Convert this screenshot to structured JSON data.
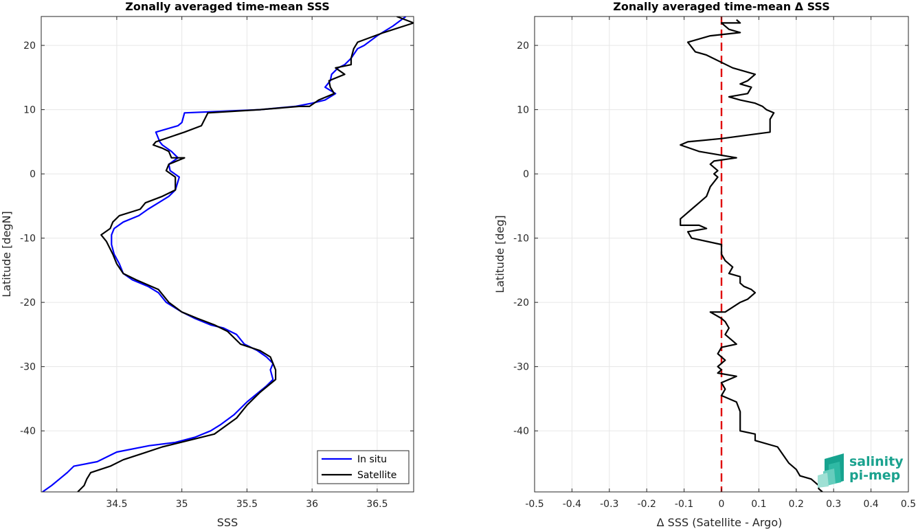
{
  "chart_data": [
    {
      "type": "line",
      "title": "Zonally averaged time-mean SSS",
      "xlabel": "SSS",
      "ylabel": "Latitude [degN]",
      "xlim": [
        33.92,
        36.78
      ],
      "ylim": [
        -49.5,
        24.5
      ],
      "xticks": [
        34.5,
        35,
        35.5,
        36,
        36.5
      ],
      "xtick_labels": [
        "34.5",
        "35",
        "35.5",
        "36",
        "36.5"
      ],
      "yticks": [
        20,
        10,
        0,
        -10,
        -20,
        -30,
        -40
      ],
      "ytick_labels": [
        "20",
        "10",
        "0",
        "-10",
        "-20",
        "-30",
        "-40"
      ],
      "grid": true,
      "legend": {
        "placement": "bottom-right"
      },
      "series": [
        {
          "name": "In situ",
          "color": "#0000ff",
          "points": [
            [
              36.72,
              24.5
            ],
            [
              36.62,
              23.0
            ],
            [
              36.5,
              21.5
            ],
            [
              36.4,
              20.0
            ],
            [
              36.35,
              19.5
            ],
            [
              36.3,
              18.0
            ],
            [
              36.25,
              17.0
            ],
            [
              36.2,
              16.5
            ],
            [
              36.15,
              15.5
            ],
            [
              36.14,
              14.5
            ],
            [
              36.1,
              13.5
            ],
            [
              36.18,
              12.5
            ],
            [
              36.1,
              11.5
            ],
            [
              36.0,
              11.0
            ],
            [
              35.87,
              10.5
            ],
            [
              35.6,
              10.0
            ],
            [
              35.02,
              9.5
            ],
            [
              35.0,
              8.0
            ],
            [
              34.97,
              7.5
            ],
            [
              34.8,
              6.5
            ],
            [
              34.83,
              5.0
            ],
            [
              34.85,
              4.5
            ],
            [
              34.92,
              3.5
            ],
            [
              34.97,
              2.5
            ],
            [
              34.9,
              1.5
            ],
            [
              34.91,
              0.5
            ],
            [
              34.98,
              -0.5
            ],
            [
              34.95,
              -2.5
            ],
            [
              34.9,
              -3.5
            ],
            [
              34.82,
              -4.5
            ],
            [
              34.74,
              -5.5
            ],
            [
              34.67,
              -6.5
            ],
            [
              34.55,
              -7.5
            ],
            [
              34.48,
              -8.5
            ],
            [
              34.46,
              -9.5
            ],
            [
              34.46,
              -11.0
            ],
            [
              34.48,
              -12.5
            ],
            [
              34.52,
              -14.0
            ],
            [
              34.55,
              -15.5
            ],
            [
              34.62,
              -16.5
            ],
            [
              34.74,
              -17.5
            ],
            [
              34.82,
              -18.5
            ],
            [
              34.88,
              -20.0
            ],
            [
              35.0,
              -21.5
            ],
            [
              35.1,
              -22.5
            ],
            [
              35.22,
              -23.5
            ],
            [
              35.32,
              -24.0
            ],
            [
              35.42,
              -25.0
            ],
            [
              35.48,
              -26.5
            ],
            [
              35.58,
              -27.5
            ],
            [
              35.65,
              -28.5
            ],
            [
              35.7,
              -29.5
            ],
            [
              35.68,
              -30.5
            ],
            [
              35.7,
              -32.0
            ],
            [
              35.65,
              -33.0
            ],
            [
              35.5,
              -35.5
            ],
            [
              35.4,
              -37.5
            ],
            [
              35.3,
              -39.0
            ],
            [
              35.22,
              -40.0
            ],
            [
              35.1,
              -41.0
            ],
            [
              34.95,
              -41.8
            ],
            [
              34.75,
              -42.3
            ],
            [
              34.5,
              -43.3
            ],
            [
              34.35,
              -44.8
            ],
            [
              34.17,
              -45.5
            ],
            [
              34.12,
              -46.5
            ],
            [
              34.06,
              -47.5
            ],
            [
              34.0,
              -48.5
            ],
            [
              33.93,
              -49.5
            ]
          ]
        },
        {
          "name": "Satellite",
          "color": "#000000",
          "points": [
            [
              36.65,
              24.5
            ],
            [
              36.78,
              23.5
            ],
            [
              36.55,
              22.0
            ],
            [
              36.35,
              20.5
            ],
            [
              36.32,
              19.5
            ],
            [
              36.3,
              18.0
            ],
            [
              36.3,
              17.0
            ],
            [
              36.18,
              16.5
            ],
            [
              36.25,
              15.5
            ],
            [
              36.13,
              14.5
            ],
            [
              36.14,
              13.5
            ],
            [
              36.17,
              12.5
            ],
            [
              36.05,
              11.5
            ],
            [
              35.98,
              10.5
            ],
            [
              35.9,
              10.5
            ],
            [
              35.6,
              10.0
            ],
            [
              35.2,
              9.5
            ],
            [
              35.15,
              7.5
            ],
            [
              35.02,
              6.5
            ],
            [
              34.8,
              5.0
            ],
            [
              34.78,
              4.5
            ],
            [
              34.85,
              4.0
            ],
            [
              34.9,
              3.5
            ],
            [
              34.92,
              2.5
            ],
            [
              35.02,
              2.5
            ],
            [
              34.9,
              1.5
            ],
            [
              34.88,
              0.5
            ],
            [
              34.95,
              -0.5
            ],
            [
              34.95,
              -2.5
            ],
            [
              34.85,
              -3.5
            ],
            [
              34.72,
              -4.5
            ],
            [
              34.68,
              -5.5
            ],
            [
              34.52,
              -6.5
            ],
            [
              34.47,
              -7.5
            ],
            [
              34.45,
              -8.5
            ],
            [
              34.38,
              -9.5
            ],
            [
              34.42,
              -10.5
            ],
            [
              34.47,
              -12.5
            ],
            [
              34.5,
              -14.0
            ],
            [
              34.55,
              -15.5
            ],
            [
              34.65,
              -16.5
            ],
            [
              34.82,
              -18.0
            ],
            [
              34.9,
              -20.0
            ],
            [
              35.0,
              -21.5
            ],
            [
              35.12,
              -22.5
            ],
            [
              35.25,
              -23.5
            ],
            [
              35.35,
              -24.5
            ],
            [
              35.45,
              -26.5
            ],
            [
              35.6,
              -27.5
            ],
            [
              35.68,
              -28.5
            ],
            [
              35.72,
              -30.5
            ],
            [
              35.72,
              -32.0
            ],
            [
              35.6,
              -34.0
            ],
            [
              35.5,
              -36.0
            ],
            [
              35.42,
              -38.0
            ],
            [
              35.25,
              -40.5
            ],
            [
              35.05,
              -41.5
            ],
            [
              34.85,
              -42.5
            ],
            [
              34.7,
              -43.5
            ],
            [
              34.55,
              -44.5
            ],
            [
              34.45,
              -45.5
            ],
            [
              34.3,
              -46.5
            ],
            [
              34.27,
              -47.5
            ],
            [
              34.25,
              -48.5
            ],
            [
              34.2,
              -49.5
            ]
          ]
        }
      ]
    },
    {
      "type": "line",
      "title": "Zonally averaged time-mean Δ SSS",
      "xlabel": "Δ SSS (Satellite - Argo)",
      "ylabel": "Latitude [deg]",
      "xlim": [
        -0.5,
        0.5
      ],
      "ylim": [
        -49.5,
        24.5
      ],
      "xticks": [
        -0.5,
        -0.4,
        -0.3,
        -0.2,
        -0.1,
        0,
        0.1,
        0.2,
        0.3,
        0.4,
        0.5
      ],
      "xtick_labels": [
        "-0.5",
        "-0.4",
        "-0.3",
        "-0.2",
        "-0.1",
        "0",
        "0.1",
        "0.2",
        "0.3",
        "0.4",
        "0.5"
      ],
      "yticks": [
        20,
        10,
        0,
        -10,
        -20,
        -30,
        -40
      ],
      "ytick_labels": [
        "20",
        "10",
        "0",
        "-10",
        "-20",
        "-30",
        "-40"
      ],
      "grid": true,
      "reference_line": {
        "x": 0,
        "color": "#e00000",
        "style": "dashed"
      },
      "series": [
        {
          "color": "#000000",
          "points": [
            [
              0.04,
              24.0
            ],
            [
              0.05,
              23.5
            ],
            [
              0.0,
              23.5
            ],
            [
              0.02,
              22.5
            ],
            [
              0.05,
              22.0
            ],
            [
              -0.03,
              21.5
            ],
            [
              -0.09,
              20.5
            ],
            [
              -0.07,
              19.0
            ],
            [
              -0.04,
              18.5
            ],
            [
              0.03,
              16.5
            ],
            [
              0.09,
              15.5
            ],
            [
              0.07,
              14.5
            ],
            [
              0.05,
              14.0
            ],
            [
              0.08,
              13.5
            ],
            [
              0.07,
              12.5
            ],
            [
              0.02,
              12.0
            ],
            [
              0.05,
              11.5
            ],
            [
              0.09,
              11.0
            ],
            [
              0.11,
              10.5
            ],
            [
              0.12,
              10.0
            ],
            [
              0.14,
              9.5
            ],
            [
              0.13,
              8.5
            ],
            [
              0.13,
              6.5
            ],
            [
              0.0,
              5.5
            ],
            [
              -0.09,
              5.0
            ],
            [
              -0.11,
              4.5
            ],
            [
              -0.06,
              3.5
            ],
            [
              0.04,
              2.5
            ],
            [
              -0.02,
              2.0
            ],
            [
              -0.03,
              1.5
            ],
            [
              -0.01,
              0.5
            ],
            [
              -0.02,
              0.0
            ],
            [
              -0.01,
              -0.5
            ],
            [
              -0.03,
              -2.0
            ],
            [
              -0.04,
              -3.5
            ],
            [
              -0.06,
              -4.5
            ],
            [
              -0.08,
              -5.5
            ],
            [
              -0.1,
              -6.5
            ],
            [
              -0.11,
              -7.0
            ],
            [
              -0.11,
              -8.0
            ],
            [
              -0.06,
              -8.0
            ],
            [
              -0.04,
              -8.5
            ],
            [
              -0.09,
              -9.0
            ],
            [
              -0.08,
              -10.0
            ],
            [
              0.0,
              -11.0
            ],
            [
              0.0,
              -12.5
            ],
            [
              0.01,
              -13.5
            ],
            [
              0.03,
              -14.5
            ],
            [
              0.02,
              -15.5
            ],
            [
              0.05,
              -16.0
            ],
            [
              0.05,
              -17.0
            ],
            [
              0.06,
              -17.5
            ],
            [
              0.08,
              -18.0
            ],
            [
              0.09,
              -18.5
            ],
            [
              0.07,
              -19.5
            ],
            [
              0.05,
              -20.0
            ],
            [
              0.01,
              -21.5
            ],
            [
              -0.03,
              -21.5
            ],
            [
              0.0,
              -22.5
            ],
            [
              0.01,
              -23.0
            ],
            [
              0.02,
              -24.0
            ],
            [
              0.01,
              -25.0
            ],
            [
              0.03,
              -26.0
            ],
            [
              0.04,
              -26.5
            ],
            [
              0.0,
              -27.0
            ],
            [
              -0.01,
              -28.0
            ],
            [
              0.01,
              -29.0
            ],
            [
              -0.01,
              -30.0
            ],
            [
              0.0,
              -30.5
            ],
            [
              -0.01,
              -31.0
            ],
            [
              0.04,
              -31.5
            ],
            [
              0.0,
              -32.5
            ],
            [
              0.01,
              -33.5
            ],
            [
              0.0,
              -34.5
            ],
            [
              0.04,
              -35.5
            ],
            [
              0.05,
              -37.0
            ],
            [
              0.05,
              -38.0
            ],
            [
              0.05,
              -39.5
            ],
            [
              0.05,
              -40.0
            ],
            [
              0.09,
              -40.5
            ],
            [
              0.09,
              -41.5
            ],
            [
              0.15,
              -42.5
            ],
            [
              0.18,
              -45.0
            ],
            [
              0.2,
              -46.0
            ],
            [
              0.21,
              -47.0
            ],
            [
              0.24,
              -47.5
            ],
            [
              0.26,
              -48.5
            ],
            [
              0.26,
              -49.0
            ],
            [
              0.27,
              -49.5
            ]
          ]
        }
      ]
    }
  ],
  "logo": {
    "line1": "salinity",
    "line2": "pi-mep"
  }
}
